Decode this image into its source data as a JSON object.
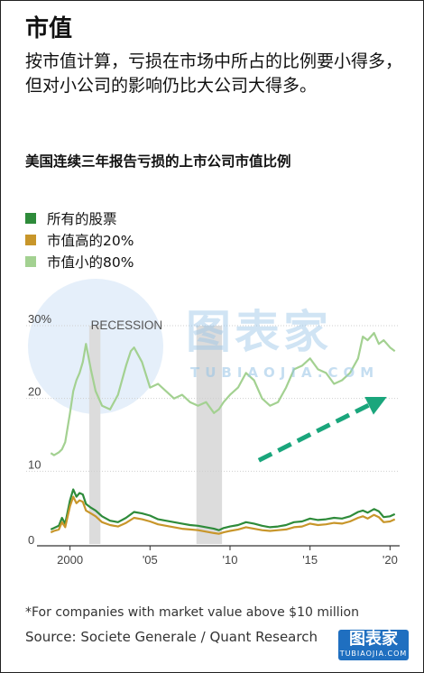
{
  "header": {
    "title": "市值",
    "subtitle": "按市值计算，亏损在市场中所占的比例要小得多，但对小公司的影响仍比大公司大得多。"
  },
  "watermark": {
    "text": "图表家",
    "sub": "TUBIAOJIA.COM"
  },
  "footer": {
    "footnote": "*For companies with market value above $10 million",
    "source": "Source: Societe Generale / Quant Research",
    "logo_text": "图表家",
    "logo_sub": "TUBIAOJIA.COM"
  },
  "chart_data": {
    "type": "line",
    "title": "美国连续三年报告亏损的上市公司市值比例",
    "xlabel": "",
    "ylabel": "",
    "xlim": [
      1998.5,
      2020.6
    ],
    "ylim": [
      0,
      30
    ],
    "y_ticks": [
      0,
      10,
      20,
      30
    ],
    "y_tick_labels": [
      "0",
      "10",
      "20",
      "30%"
    ],
    "x_ticks": [
      2000,
      2005,
      2010,
      2015,
      2020
    ],
    "x_tick_labels": [
      "2000",
      "'05",
      "'10",
      "'15",
      "'20"
    ],
    "grid": true,
    "legend_position": "top-left",
    "annotations": [
      {
        "text": "RECESSION",
        "x": 2001.3,
        "y": 30
      }
    ],
    "recessions": [
      [
        2001.2,
        2001.9
      ],
      [
        2007.9,
        2009.5
      ]
    ],
    "trend_arrow": {
      "from": [
        2011.8,
        11.5
      ],
      "to": [
        2019.8,
        20.2
      ]
    },
    "series": [
      {
        "name": "所有的股票",
        "color": "#2e8b3a",
        "x": [
          1998.8,
          1999,
          1999.3,
          1999.5,
          1999.7,
          2000,
          2000.2,
          2000.4,
          2000.6,
          2000.8,
          2001,
          2001.3,
          2001.6,
          2002,
          2002.5,
          2003,
          2003.5,
          2004,
          2004.5,
          2005,
          2005.5,
          2006,
          2006.5,
          2007,
          2007.5,
          2008,
          2008.5,
          2009,
          2009.3,
          2009.6,
          2010,
          2010.5,
          2011,
          2011.5,
          2012,
          2012.5,
          2013,
          2013.5,
          2014,
          2014.5,
          2015,
          2015.5,
          2016,
          2016.5,
          2017,
          2017.5,
          2018,
          2018.3,
          2018.6,
          2019,
          2019.3,
          2019.6,
          2020,
          2020.3
        ],
        "values": [
          2.0,
          2.2,
          2.5,
          3.6,
          2.8,
          6.0,
          7.5,
          6.5,
          7.0,
          6.8,
          5.5,
          5.0,
          4.6,
          3.8,
          3.2,
          3.0,
          3.6,
          4.4,
          4.2,
          3.9,
          3.4,
          3.2,
          3.0,
          2.8,
          2.6,
          2.5,
          2.3,
          2.1,
          1.9,
          2.2,
          2.4,
          2.6,
          3.0,
          2.8,
          2.5,
          2.3,
          2.4,
          2.6,
          3.0,
          3.1,
          3.5,
          3.3,
          3.4,
          3.6,
          3.5,
          3.8,
          4.4,
          4.6,
          4.3,
          4.8,
          4.5,
          3.7,
          3.8,
          4.1
        ]
      },
      {
        "name": "市值高的20%",
        "color": "#c8962a",
        "x": [
          1998.8,
          1999,
          1999.3,
          1999.5,
          1999.7,
          2000,
          2000.2,
          2000.4,
          2000.6,
          2000.8,
          2001,
          2001.3,
          2001.6,
          2002,
          2002.5,
          2003,
          2003.5,
          2004,
          2004.5,
          2005,
          2005.5,
          2006,
          2006.5,
          2007,
          2007.5,
          2008,
          2008.5,
          2009,
          2009.3,
          2009.6,
          2010,
          2010.5,
          2011,
          2011.5,
          2012,
          2012.5,
          2013,
          2013.5,
          2014,
          2014.5,
          2015,
          2015.5,
          2016,
          2016.5,
          2017,
          2017.5,
          2018,
          2018.3,
          2018.6,
          2019,
          2019.3,
          2019.6,
          2020,
          2020.3
        ],
        "values": [
          1.6,
          1.8,
          2.0,
          3.0,
          2.3,
          5.2,
          6.5,
          5.6,
          6.0,
          5.8,
          4.6,
          4.2,
          3.8,
          3.0,
          2.6,
          2.4,
          2.9,
          3.6,
          3.4,
          3.1,
          2.7,
          2.5,
          2.3,
          2.1,
          2.0,
          1.9,
          1.7,
          1.5,
          1.4,
          1.6,
          1.8,
          2.0,
          2.3,
          2.1,
          1.9,
          1.8,
          1.9,
          2.0,
          2.3,
          2.4,
          2.8,
          2.6,
          2.7,
          2.9,
          2.8,
          3.1,
          3.6,
          3.8,
          3.5,
          4.0,
          3.7,
          3.0,
          3.1,
          3.4
        ]
      },
      {
        "name": "市值小的80%",
        "color": "#a3d191",
        "x": [
          1998.8,
          1999,
          1999.3,
          1999.5,
          1999.7,
          2000,
          2000.2,
          2000.4,
          2000.6,
          2000.8,
          2001,
          2001.3,
          2001.6,
          2002,
          2002.5,
          2003,
          2003.5,
          2003.8,
          2004,
          2004.5,
          2005,
          2005.5,
          2006,
          2006.5,
          2007,
          2007.5,
          2008,
          2008.5,
          2009,
          2009.3,
          2009.6,
          2010,
          2010.5,
          2011,
          2011.5,
          2012,
          2012.5,
          2013,
          2013.5,
          2014,
          2014.5,
          2015,
          2015.5,
          2016,
          2016.5,
          2017,
          2017.5,
          2018,
          2018.3,
          2018.6,
          2019,
          2019.3,
          2019.6,
          2020,
          2020.3
        ],
        "values": [
          12.5,
          12.2,
          12.6,
          13.0,
          14.0,
          18.0,
          21.0,
          22.5,
          23.5,
          25.0,
          27.5,
          24.0,
          21.0,
          19.0,
          18.5,
          20.5,
          24.5,
          26.5,
          27.0,
          25.0,
          21.5,
          22.0,
          21.0,
          20.0,
          20.5,
          19.5,
          19.0,
          19.5,
          18.0,
          18.5,
          19.5,
          20.5,
          21.5,
          23.5,
          22.5,
          20.0,
          19.0,
          19.5,
          21.5,
          24.0,
          24.5,
          25.5,
          24.0,
          23.5,
          22.0,
          22.5,
          23.5,
          25.5,
          28.5,
          28.0,
          29.0,
          27.5,
          28.0,
          27.0,
          26.5
        ]
      }
    ]
  }
}
